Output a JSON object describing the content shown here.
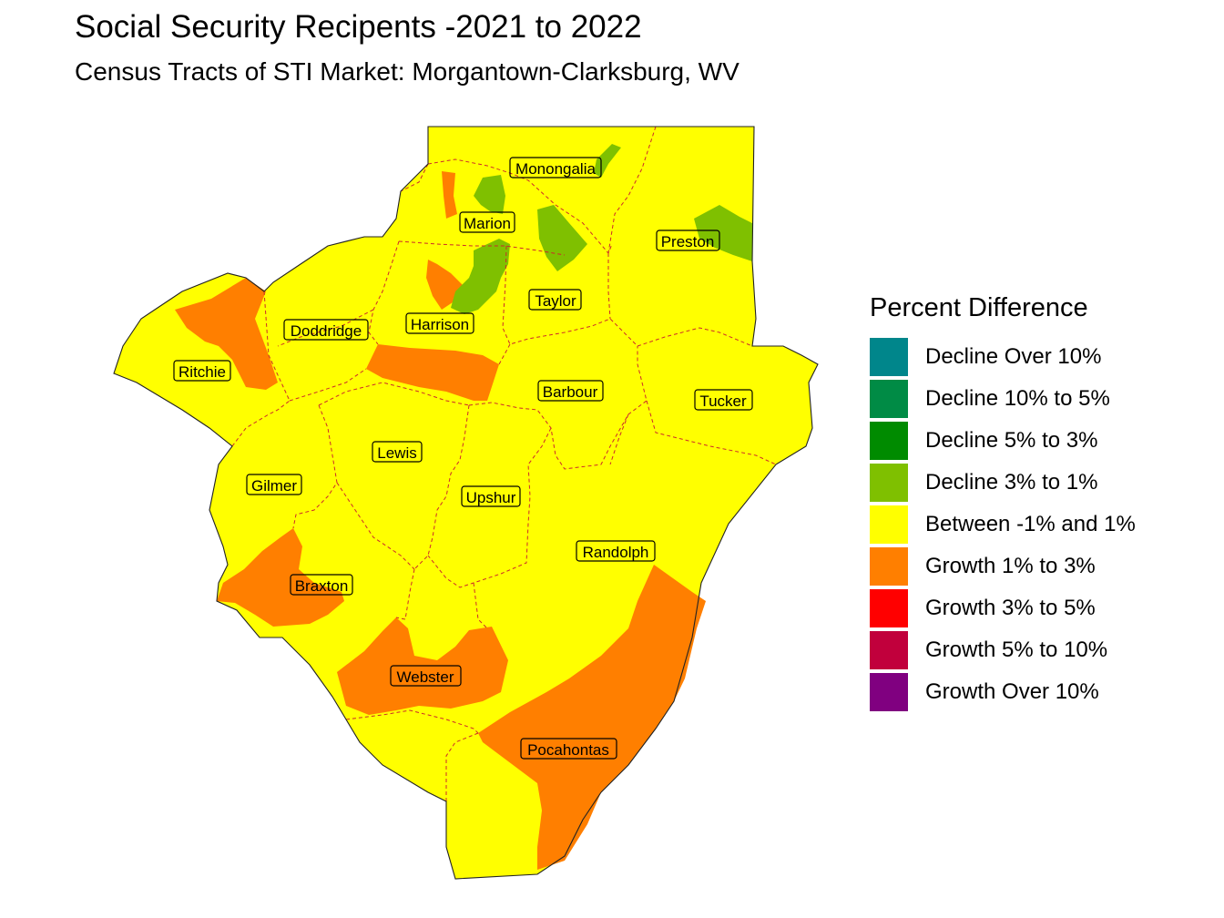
{
  "title": "Social Security Recipents -2021 to 2022",
  "subtitle": "Census Tracts of STI Market: Morgantown-Clarksburg, WV",
  "legend": {
    "title": "Percent Difference",
    "items": [
      {
        "label": "Decline Over 10%",
        "color": "#00868B"
      },
      {
        "label": "Decline 10% to 5%",
        "color": "#008B45"
      },
      {
        "label": "Decline 5% to 3%",
        "color": "#008B00"
      },
      {
        "label": "Decline 3% to 1%",
        "color": "#7FC000"
      },
      {
        "label": "Between -1% and 1%",
        "color": "#FFFF00"
      },
      {
        "label": "Growth 1% to 3%",
        "color": "#FF7F00"
      },
      {
        "label": "Growth 3% to 5%",
        "color": "#FF0000"
      },
      {
        "label": "Growth 5% to 10%",
        "color": "#C1003C"
      },
      {
        "label": "Growth Over 10%",
        "color": "#800080"
      }
    ]
  },
  "counties": [
    "Monongalia",
    "Marion",
    "Preston",
    "Taylor",
    "Harrison",
    "Doddridge",
    "Ritchie",
    "Barbour",
    "Tucker",
    "Lewis",
    "Gilmer",
    "Upshur",
    "Randolph",
    "Braxton",
    "Webster",
    "Pocahontas"
  ]
}
